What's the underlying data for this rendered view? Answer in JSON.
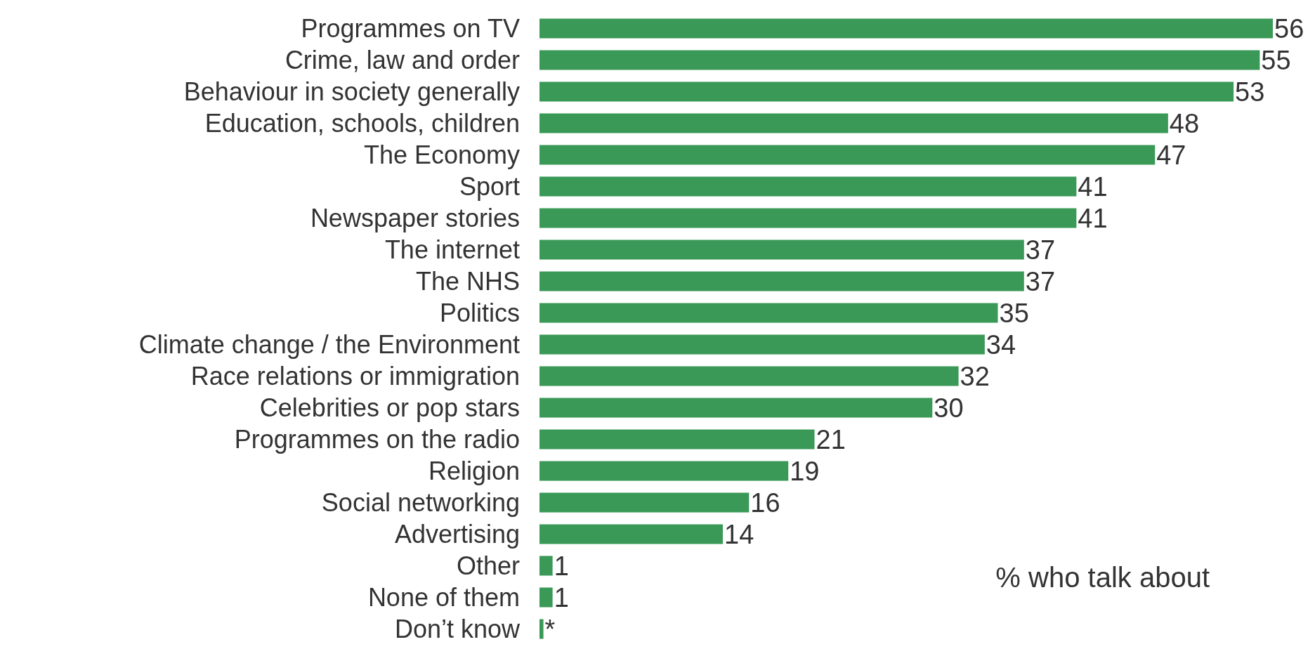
{
  "chart_data": {
    "type": "bar",
    "orientation": "horizontal",
    "categories": [
      "Programmes on TV",
      "Crime, law and order",
      "Behaviour in society generally",
      "Education, schools, children",
      "The Economy",
      "Sport",
      "Newspaper stories",
      "The internet",
      "The NHS",
      "Politics",
      "Climate change / the Environment",
      "Race relations or immigration",
      "Celebrities or pop stars",
      "Programmes on the radio",
      "Religion",
      "Social networking",
      "Advertising",
      "Other",
      "None of them",
      "Don’t know"
    ],
    "values": [
      56,
      55,
      53,
      48,
      47,
      41,
      41,
      37,
      37,
      35,
      34,
      32,
      30,
      21,
      19,
      16,
      14,
      1,
      1,
      0.3
    ],
    "value_labels": [
      "56",
      "55",
      "53",
      "48",
      "47",
      "41",
      "41",
      "37",
      "37",
      "35",
      "34",
      "32",
      "30",
      "21",
      "19",
      "16",
      "14",
      "1",
      "1",
      "*"
    ],
    "color": "#3a9957",
    "annotations": [
      "% who talk about"
    ]
  }
}
